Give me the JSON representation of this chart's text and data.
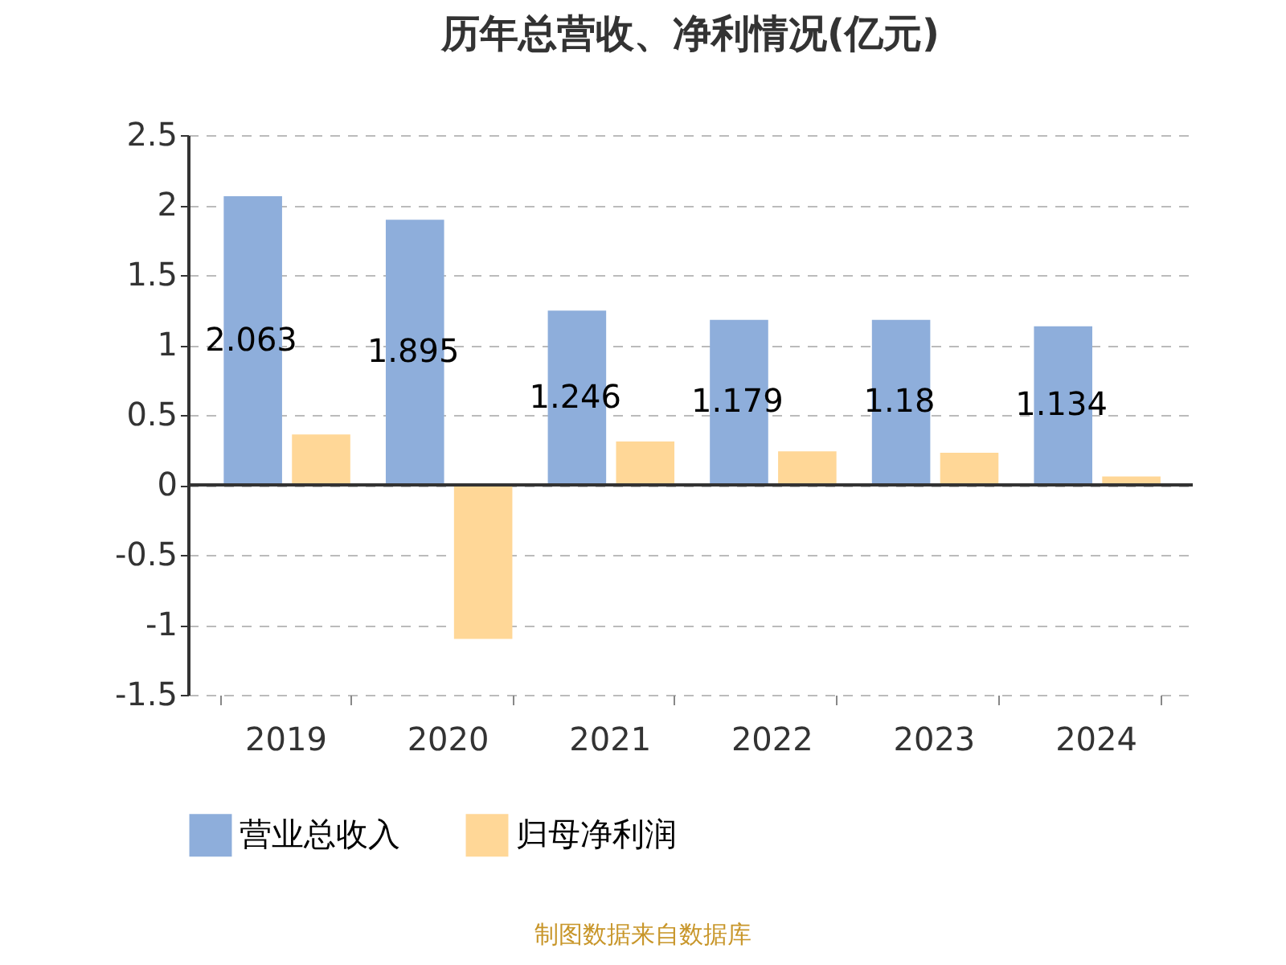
{
  "chart_data": {
    "type": "bar",
    "title": "历年总营收、净利情况(亿元)",
    "categories": [
      "2019",
      "2020",
      "2021",
      "2022",
      "2023",
      "2024"
    ],
    "series": [
      {
        "name": "营业总收入",
        "color": "#8eaedb",
        "values": [
          2.063,
          1.895,
          1.246,
          1.179,
          1.18,
          1.134
        ],
        "value_labels": [
          "2.063",
          "1.895",
          "1.246",
          "1.179",
          "1.18",
          "1.134"
        ]
      },
      {
        "name": "归母净利润",
        "color": "#ffd797",
        "values": [
          0.36,
          -1.1,
          0.31,
          0.24,
          0.23,
          0.06
        ]
      }
    ],
    "ylim": [
      -1.5,
      2.5
    ],
    "yticks": [
      -1.5,
      -1,
      -0.5,
      0,
      0.5,
      1,
      1.5,
      2,
      2.5
    ],
    "grid": "y",
    "legend": "bottom",
    "annotations": [
      "制图数据来自数据库"
    ]
  }
}
